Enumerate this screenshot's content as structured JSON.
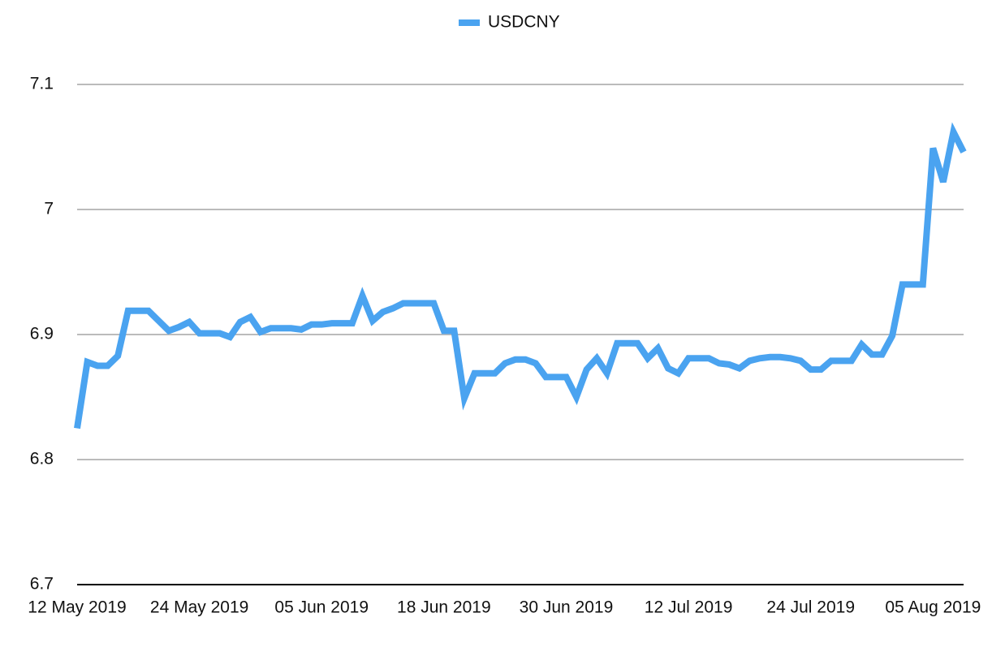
{
  "chart_data": {
    "type": "line",
    "categories": [
      "12 May 2019",
      null,
      null,
      null,
      null,
      null,
      null,
      null,
      null,
      null,
      null,
      null,
      "24 May 2019",
      null,
      null,
      null,
      null,
      null,
      null,
      null,
      null,
      null,
      null,
      null,
      "05 Jun 2019",
      null,
      null,
      null,
      null,
      null,
      null,
      null,
      null,
      null,
      null,
      null,
      "18 Jun 2019",
      null,
      null,
      null,
      null,
      null,
      null,
      null,
      null,
      null,
      null,
      null,
      "30 Jun 2019",
      null,
      null,
      null,
      null,
      null,
      null,
      null,
      null,
      null,
      null,
      null,
      "12 Jul 2019",
      null,
      null,
      null,
      null,
      null,
      null,
      null,
      null,
      null,
      null,
      null,
      "24 Jul 2019",
      null,
      null,
      null,
      null,
      null,
      null,
      null,
      null,
      null,
      null,
      null,
      "05 Aug 2019",
      null,
      null,
      null
    ],
    "series": [
      {
        "name": "USDCNY",
        "color": "#4aa3f0",
        "values": [
          6.825,
          6.878,
          6.875,
          6.875,
          6.883,
          6.919,
          6.919,
          6.919,
          6.911,
          6.903,
          6.906,
          6.91,
          6.901,
          6.901,
          6.901,
          6.898,
          6.91,
          6.914,
          6.902,
          6.905,
          6.905,
          6.905,
          6.904,
          6.908,
          6.908,
          6.909,
          6.909,
          6.909,
          6.931,
          6.911,
          6.918,
          6.921,
          6.925,
          6.925,
          6.925,
          6.925,
          6.903,
          6.903,
          6.849,
          6.869,
          6.869,
          6.869,
          6.877,
          6.88,
          6.88,
          6.877,
          6.866,
          6.866,
          6.866,
          6.85,
          6.872,
          6.881,
          6.869,
          6.893,
          6.893,
          6.893,
          6.881,
          6.889,
          6.873,
          6.869,
          6.881,
          6.881,
          6.881,
          6.877,
          6.876,
          6.873,
          6.879,
          6.881,
          6.882,
          6.882,
          6.881,
          6.879,
          6.872,
          6.872,
          6.879,
          6.879,
          6.879,
          6.892,
          6.884,
          6.884,
          6.899,
          6.94,
          6.94,
          6.94,
          7.049,
          7.022,
          7.062,
          7.046
        ]
      }
    ],
    "ylim": [
      6.7,
      7.1
    ],
    "yticks": [
      6.7,
      6.8,
      6.9,
      7,
      7.1
    ],
    "grid": true,
    "legend": "top"
  }
}
